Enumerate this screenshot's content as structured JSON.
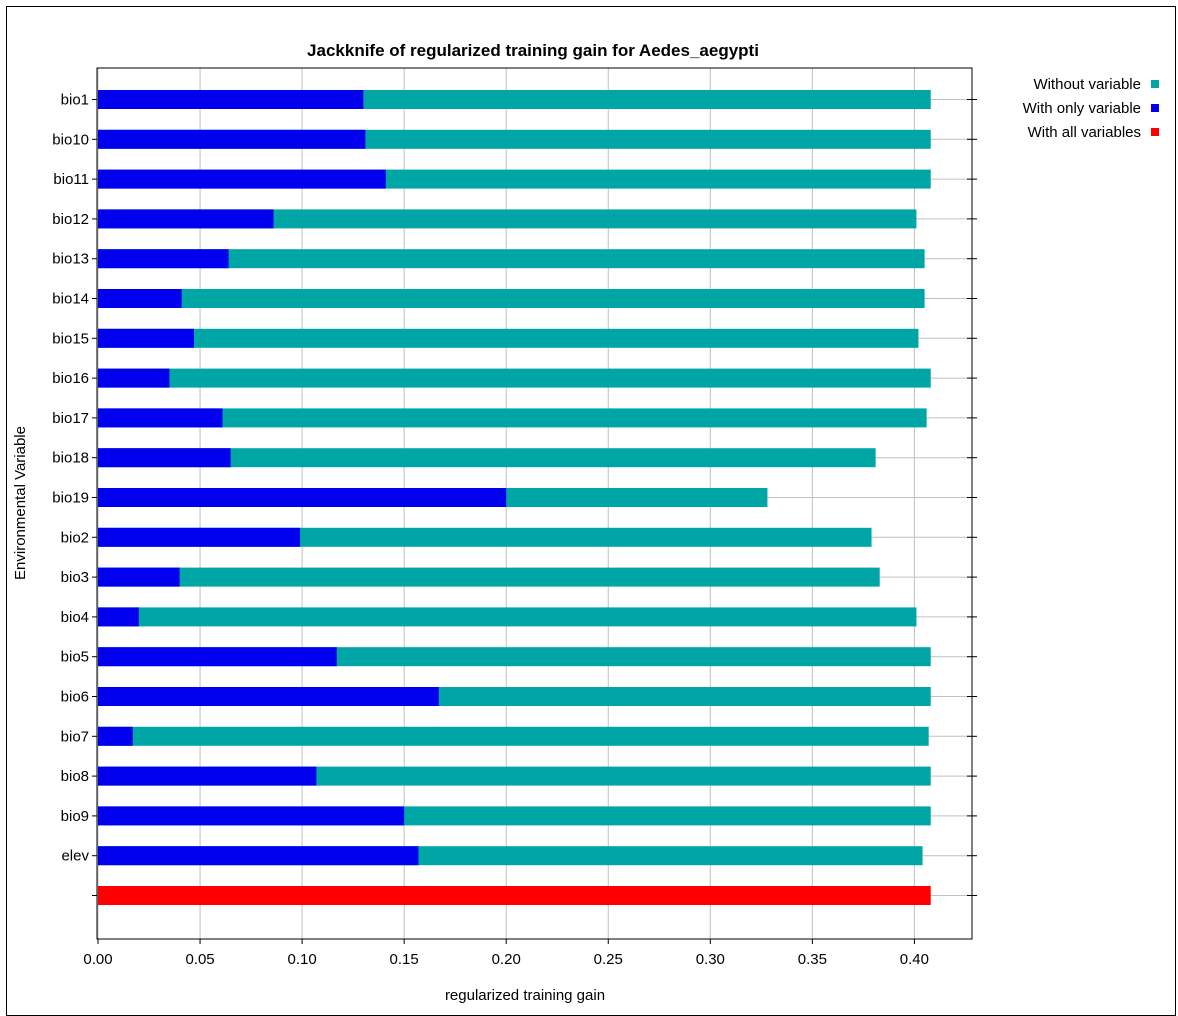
{
  "chart_data": {
    "type": "bar",
    "title": "Jackknife of regularized training gain for Aedes_aegypti",
    "xlabel": "regularized training gain",
    "ylabel": "Environmental Variable",
    "xlim": [
      0,
      0.43
    ],
    "x_ticks": [
      "0.00",
      "0.05",
      "0.10",
      "0.15",
      "0.20",
      "0.25",
      "0.30",
      "0.35",
      "0.40"
    ],
    "x_tick_values": [
      0.0,
      0.05,
      0.1,
      0.15,
      0.2,
      0.25,
      0.3,
      0.35,
      0.4
    ],
    "grid": true,
    "legend_position": "top-right",
    "categories": [
      "bio1",
      "bio10",
      "bio11",
      "bio12",
      "bio13",
      "bio14",
      "bio15",
      "bio16",
      "bio17",
      "bio18",
      "bio19",
      "bio2",
      "bio3",
      "bio4",
      "bio5",
      "bio6",
      "bio7",
      "bio8",
      "bio9",
      "elev"
    ],
    "series": [
      {
        "name": "Without variable",
        "color": "#00a6a6",
        "values": [
          0.408,
          0.408,
          0.408,
          0.401,
          0.405,
          0.405,
          0.402,
          0.408,
          0.406,
          0.381,
          0.328,
          0.379,
          0.383,
          0.401,
          0.408,
          0.408,
          0.407,
          0.408,
          0.408,
          0.404
        ]
      },
      {
        "name": "With only variable",
        "color": "#0000ee",
        "values": [
          0.13,
          0.131,
          0.141,
          0.086,
          0.064,
          0.041,
          0.047,
          0.035,
          0.061,
          0.065,
          0.2,
          0.099,
          0.04,
          0.02,
          0.117,
          0.167,
          0.017,
          0.107,
          0.15,
          0.157
        ]
      },
      {
        "name": "With all variables",
        "color": "#ff0000",
        "value": 0.408
      }
    ]
  }
}
